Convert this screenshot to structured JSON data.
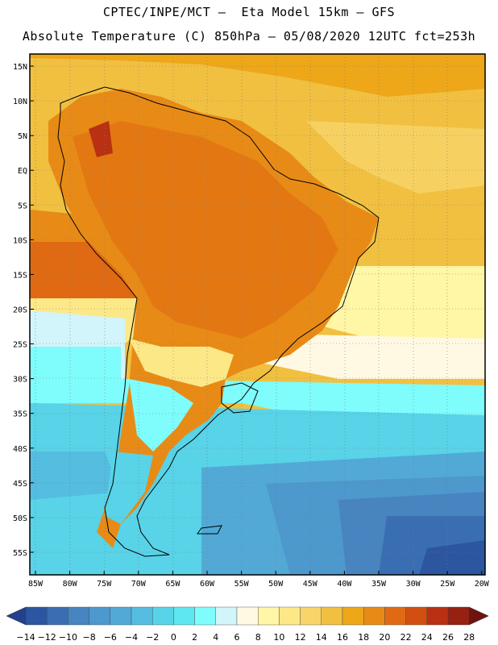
{
  "header": {
    "line1": "CPTEC/INPE/MCT –  Eta Model 15km – GFS",
    "line2": "Absolute Temperature (C) 850hPa – 05/08/2020 12UTC fct=253h"
  },
  "map": {
    "lat_labels": [
      "15N",
      "10N",
      "5N",
      "EQ",
      "5S",
      "10S",
      "15S",
      "20S",
      "25S",
      "30S",
      "35S",
      "40S",
      "45S",
      "50S",
      "55S"
    ],
    "lon_labels": [
      "85W",
      "80W",
      "75W",
      "70W",
      "65W",
      "60W",
      "55W",
      "50W",
      "45W",
      "40W",
      "35W",
      "30W",
      "25W",
      "20W"
    ],
    "extent": {
      "lon": [
        -86,
        -19
      ],
      "lat": [
        -58,
        16
      ]
    }
  },
  "colorbar": {
    "levels": [
      "-14",
      "-12",
      "-10",
      "-8",
      "-6",
      "-4",
      "-2",
      "0",
      "2",
      "4",
      "6",
      "8",
      "10",
      "12",
      "14",
      "16",
      "18",
      "20",
      "22",
      "24",
      "26",
      "28"
    ],
    "colors": [
      "#23418e",
      "#2c56a0",
      "#3a6eb3",
      "#4784c0",
      "#4d98cc",
      "#52a9d6",
      "#54bde0",
      "#58d3e8",
      "#5fe6f0",
      "#7ffcfc",
      "#d2f4fb",
      "#fff9e3",
      "#fff6a6",
      "#fde888",
      "#f8d46a",
      "#f1c041",
      "#eda719",
      "#e88b16",
      "#df6a13",
      "#d24f11",
      "#b93012",
      "#962012",
      "#6e1410"
    ]
  }
}
